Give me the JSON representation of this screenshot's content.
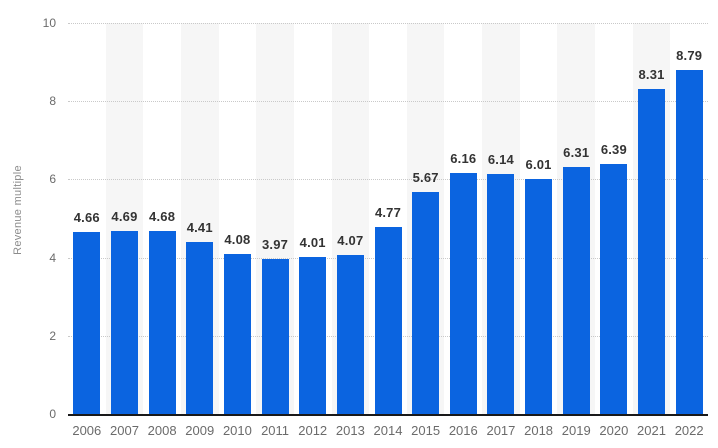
{
  "chart_data": {
    "type": "bar",
    "title": "",
    "xlabel": "",
    "ylabel": "Revenue multiple",
    "categories": [
      "2006",
      "2007",
      "2008",
      "2009",
      "2010",
      "2011",
      "2012",
      "2013",
      "2014",
      "2015",
      "2016",
      "2017",
      "2018",
      "2019",
      "2020",
      "2021",
      "2022"
    ],
    "values": [
      4.66,
      4.69,
      4.68,
      4.41,
      4.08,
      3.97,
      4.01,
      4.07,
      4.77,
      5.67,
      6.16,
      6.14,
      6.01,
      6.31,
      6.39,
      8.31,
      8.79
    ],
    "data_labels": [
      "4.66",
      "4.69",
      "4.68",
      "4.41",
      "4.08",
      "3.97",
      "4.01",
      "4.07",
      "4.77",
      "5.67",
      "6.16",
      "6.14",
      "6.01",
      "6.31",
      "6.39",
      "8.31",
      "8.79"
    ],
    "ylim": [
      0,
      10
    ],
    "yticks": [
      0,
      2,
      4,
      6,
      8,
      10
    ],
    "grid": "horizontal-dotted",
    "legend": "none",
    "stripes": "alternating-vertical-bands",
    "colors": {
      "bar": "#0b64e0",
      "stripe": "#f6f6f6",
      "gridline": "#c9c9c9",
      "data_label": "#333333",
      "tick_label": "#6b6b6b",
      "y_axis_title": "#8c8c8c",
      "axis_line": "#19191a",
      "background": "#ffffff"
    }
  }
}
